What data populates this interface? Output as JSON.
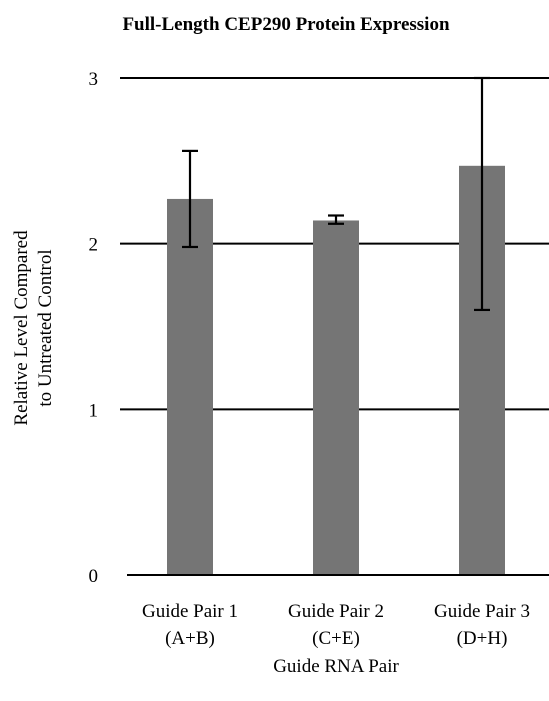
{
  "chart_data": {
    "type": "bar",
    "title": "Full-Length CEP290 Protein Expression",
    "xlabel": "Guide RNA Pair",
    "ylabel": [
      "Relative Level Compared",
      "to Untreated Control"
    ],
    "categories": [
      [
        "Guide Pair 1",
        "(A+B)"
      ],
      [
        "Guide Pair 2",
        "(C+E)"
      ],
      [
        "Guide Pair 3",
        "(D+H)"
      ]
    ],
    "values": [
      2.27,
      2.14,
      2.47
    ],
    "error_low": [
      1.98,
      2.12,
      1.6
    ],
    "error_high": [
      2.56,
      2.17,
      3.0
    ],
    "ylim": [
      0,
      3
    ],
    "yticks": [
      0,
      1,
      2,
      3
    ],
    "grid": true,
    "bar_color": "#757575"
  }
}
